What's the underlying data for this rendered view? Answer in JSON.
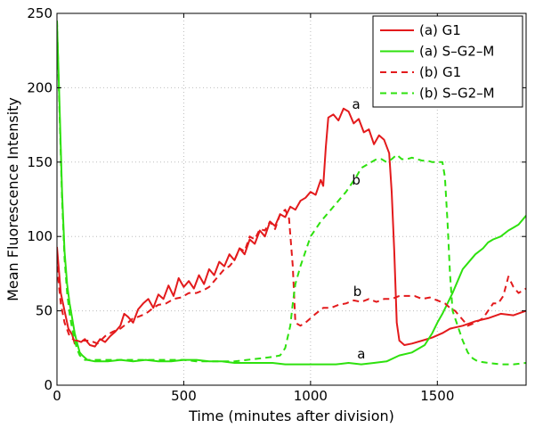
{
  "chart_data": {
    "type": "line",
    "title": "",
    "xlabel": "Time (minutes after division)",
    "ylabel": "Mean Fluorescence Intensity",
    "xlim": [
      0,
      1850
    ],
    "ylim": [
      0,
      250
    ],
    "xticks": [
      0,
      500,
      1000,
      1500
    ],
    "yticks": [
      0,
      50,
      100,
      150,
      200,
      250
    ],
    "grid": true,
    "legend_position": "top-right",
    "series": [
      {
        "name": "(a) G1",
        "color": "#e31a1c",
        "style": "solid",
        "points": [
          [
            0,
            93
          ],
          [
            15,
            62
          ],
          [
            30,
            50
          ],
          [
            45,
            38
          ],
          [
            60,
            34
          ],
          [
            70,
            28
          ],
          [
            80,
            30
          ],
          [
            95,
            29
          ],
          [
            110,
            31
          ],
          [
            130,
            27
          ],
          [
            150,
            26
          ],
          [
            170,
            31
          ],
          [
            190,
            29
          ],
          [
            210,
            33
          ],
          [
            230,
            36
          ],
          [
            250,
            40
          ],
          [
            265,
            48
          ],
          [
            280,
            46
          ],
          [
            300,
            42
          ],
          [
            320,
            51
          ],
          [
            340,
            55
          ],
          [
            360,
            58
          ],
          [
            380,
            52
          ],
          [
            400,
            61
          ],
          [
            420,
            58
          ],
          [
            440,
            67
          ],
          [
            460,
            60
          ],
          [
            480,
            72
          ],
          [
            500,
            66
          ],
          [
            520,
            70
          ],
          [
            540,
            65
          ],
          [
            560,
            74
          ],
          [
            580,
            68
          ],
          [
            600,
            78
          ],
          [
            620,
            74
          ],
          [
            640,
            83
          ],
          [
            660,
            80
          ],
          [
            680,
            88
          ],
          [
            700,
            84
          ],
          [
            720,
            92
          ],
          [
            740,
            88
          ],
          [
            760,
            98
          ],
          [
            780,
            95
          ],
          [
            800,
            104
          ],
          [
            820,
            100
          ],
          [
            840,
            110
          ],
          [
            860,
            107
          ],
          [
            880,
            115
          ],
          [
            900,
            113
          ],
          [
            920,
            120
          ],
          [
            940,
            118
          ],
          [
            960,
            124
          ],
          [
            980,
            126
          ],
          [
            1000,
            130
          ],
          [
            1020,
            128
          ],
          [
            1040,
            138
          ],
          [
            1050,
            134
          ],
          [
            1060,
            160
          ],
          [
            1070,
            180
          ],
          [
            1090,
            182
          ],
          [
            1110,
            178
          ],
          [
            1130,
            186
          ],
          [
            1150,
            184
          ],
          [
            1170,
            176
          ],
          [
            1190,
            179
          ],
          [
            1210,
            170
          ],
          [
            1230,
            172
          ],
          [
            1250,
            162
          ],
          [
            1270,
            168
          ],
          [
            1290,
            165
          ],
          [
            1310,
            156
          ],
          [
            1320,
            130
          ],
          [
            1330,
            90
          ],
          [
            1340,
            42
          ],
          [
            1350,
            30
          ],
          [
            1370,
            27
          ],
          [
            1400,
            28
          ],
          [
            1440,
            30
          ],
          [
            1480,
            32
          ],
          [
            1520,
            35
          ],
          [
            1550,
            38
          ],
          [
            1600,
            40
          ],
          [
            1650,
            43
          ],
          [
            1700,
            45
          ],
          [
            1750,
            48
          ],
          [
            1800,
            47
          ],
          [
            1850,
            50
          ]
        ]
      },
      {
        "name": "(a) S–G2–M",
        "color": "#2ee10e",
        "style": "solid",
        "points": [
          [
            0,
            245
          ],
          [
            10,
            190
          ],
          [
            20,
            130
          ],
          [
            30,
            90
          ],
          [
            40,
            68
          ],
          [
            50,
            55
          ],
          [
            60,
            45
          ],
          [
            70,
            35
          ],
          [
            80,
            28
          ],
          [
            90,
            22
          ],
          [
            100,
            20
          ],
          [
            120,
            17
          ],
          [
            150,
            16
          ],
          [
            200,
            16
          ],
          [
            250,
            17
          ],
          [
            300,
            16
          ],
          [
            350,
            17
          ],
          [
            400,
            16
          ],
          [
            450,
            16
          ],
          [
            500,
            17
          ],
          [
            550,
            17
          ],
          [
            600,
            16
          ],
          [
            650,
            16
          ],
          [
            700,
            15
          ],
          [
            750,
            15
          ],
          [
            800,
            15
          ],
          [
            850,
            15
          ],
          [
            900,
            14
          ],
          [
            950,
            14
          ],
          [
            1000,
            14
          ],
          [
            1050,
            14
          ],
          [
            1100,
            14
          ],
          [
            1150,
            15
          ],
          [
            1200,
            14
          ],
          [
            1250,
            15
          ],
          [
            1300,
            16
          ],
          [
            1350,
            20
          ],
          [
            1400,
            22
          ],
          [
            1450,
            27
          ],
          [
            1480,
            35
          ],
          [
            1500,
            42
          ],
          [
            1520,
            48
          ],
          [
            1540,
            55
          ],
          [
            1560,
            62
          ],
          [
            1580,
            70
          ],
          [
            1600,
            78
          ],
          [
            1620,
            82
          ],
          [
            1650,
            88
          ],
          [
            1680,
            92
          ],
          [
            1700,
            96
          ],
          [
            1720,
            98
          ],
          [
            1750,
            100
          ],
          [
            1780,
            104
          ],
          [
            1800,
            106
          ],
          [
            1820,
            108
          ],
          [
            1850,
            114
          ]
        ]
      },
      {
        "name": "(b) G1",
        "color": "#e31a1c",
        "style": "dashed",
        "points": [
          [
            0,
            80
          ],
          [
            15,
            55
          ],
          [
            30,
            42
          ],
          [
            50,
            33
          ],
          [
            70,
            30
          ],
          [
            100,
            30
          ],
          [
            130,
            30
          ],
          [
            160,
            28
          ],
          [
            190,
            33
          ],
          [
            220,
            36
          ],
          [
            250,
            38
          ],
          [
            280,
            42
          ],
          [
            300,
            45
          ],
          [
            320,
            46
          ],
          [
            350,
            48
          ],
          [
            380,
            52
          ],
          [
            400,
            54
          ],
          [
            430,
            55
          ],
          [
            460,
            58
          ],
          [
            490,
            59
          ],
          [
            520,
            62
          ],
          [
            550,
            62
          ],
          [
            580,
            64
          ],
          [
            600,
            66
          ],
          [
            620,
            70
          ],
          [
            640,
            74
          ],
          [
            660,
            78
          ],
          [
            680,
            80
          ],
          [
            700,
            84
          ],
          [
            720,
            92
          ],
          [
            740,
            90
          ],
          [
            760,
            100
          ],
          [
            780,
            98
          ],
          [
            800,
            105
          ],
          [
            820,
            104
          ],
          [
            840,
            110
          ],
          [
            860,
            105
          ],
          [
            880,
            115
          ],
          [
            900,
            118
          ],
          [
            915,
            112
          ],
          [
            930,
            80
          ],
          [
            940,
            42
          ],
          [
            960,
            40
          ],
          [
            980,
            42
          ],
          [
            1000,
            45
          ],
          [
            1020,
            48
          ],
          [
            1050,
            52
          ],
          [
            1080,
            52
          ],
          [
            1110,
            54
          ],
          [
            1140,
            55
          ],
          [
            1170,
            57
          ],
          [
            1200,
            56
          ],
          [
            1230,
            58
          ],
          [
            1260,
            56
          ],
          [
            1290,
            58
          ],
          [
            1320,
            58
          ],
          [
            1350,
            60
          ],
          [
            1380,
            60
          ],
          [
            1410,
            60
          ],
          [
            1440,
            58
          ],
          [
            1470,
            59
          ],
          [
            1500,
            57
          ],
          [
            1530,
            55
          ],
          [
            1550,
            52
          ],
          [
            1570,
            50
          ],
          [
            1600,
            44
          ],
          [
            1620,
            40
          ],
          [
            1650,
            42
          ],
          [
            1680,
            45
          ],
          [
            1700,
            50
          ],
          [
            1720,
            55
          ],
          [
            1740,
            55
          ],
          [
            1760,
            60
          ],
          [
            1780,
            73
          ],
          [
            1800,
            66
          ],
          [
            1820,
            62
          ],
          [
            1850,
            65
          ]
        ]
      },
      {
        "name": "(b) S–G2–M",
        "color": "#2ee10e",
        "style": "dashed",
        "points": [
          [
            0,
            245
          ],
          [
            10,
            185
          ],
          [
            20,
            125
          ],
          [
            30,
            85
          ],
          [
            40,
            62
          ],
          [
            50,
            48
          ],
          [
            60,
            38
          ],
          [
            70,
            30
          ],
          [
            80,
            24
          ],
          [
            90,
            20
          ],
          [
            110,
            17
          ],
          [
            150,
            17
          ],
          [
            200,
            17
          ],
          [
            250,
            17
          ],
          [
            300,
            17
          ],
          [
            350,
            17
          ],
          [
            400,
            17
          ],
          [
            450,
            17
          ],
          [
            500,
            17
          ],
          [
            550,
            16
          ],
          [
            600,
            16
          ],
          [
            650,
            16
          ],
          [
            700,
            16
          ],
          [
            750,
            17
          ],
          [
            800,
            18
          ],
          [
            850,
            19
          ],
          [
            880,
            20
          ],
          [
            900,
            25
          ],
          [
            920,
            40
          ],
          [
            930,
            55
          ],
          [
            940,
            68
          ],
          [
            960,
            80
          ],
          [
            980,
            90
          ],
          [
            1000,
            100
          ],
          [
            1020,
            105
          ],
          [
            1040,
            110
          ],
          [
            1060,
            114
          ],
          [
            1080,
            118
          ],
          [
            1100,
            122
          ],
          [
            1120,
            126
          ],
          [
            1140,
            130
          ],
          [
            1160,
            135
          ],
          [
            1180,
            140
          ],
          [
            1200,
            146
          ],
          [
            1220,
            148
          ],
          [
            1240,
            150
          ],
          [
            1260,
            152
          ],
          [
            1280,
            152
          ],
          [
            1300,
            150
          ],
          [
            1320,
            152
          ],
          [
            1340,
            155
          ],
          [
            1360,
            152
          ],
          [
            1380,
            152
          ],
          [
            1400,
            153
          ],
          [
            1420,
            152
          ],
          [
            1440,
            151
          ],
          [
            1460,
            151
          ],
          [
            1480,
            150
          ],
          [
            1500,
            150
          ],
          [
            1520,
            150
          ],
          [
            1530,
            140
          ],
          [
            1540,
            110
          ],
          [
            1550,
            75
          ],
          [
            1560,
            50
          ],
          [
            1580,
            40
          ],
          [
            1600,
            30
          ],
          [
            1620,
            22
          ],
          [
            1640,
            18
          ],
          [
            1660,
            16
          ],
          [
            1700,
            15
          ],
          [
            1750,
            14
          ],
          [
            1800,
            14
          ],
          [
            1850,
            15
          ]
        ]
      }
    ],
    "annotations": [
      {
        "text": "a",
        "x": 1180,
        "y": 186
      },
      {
        "text": "b",
        "x": 1180,
        "y": 135
      },
      {
        "text": "b",
        "x": 1185,
        "y": 60
      },
      {
        "text": "a",
        "x": 1200,
        "y": 18
      }
    ]
  }
}
